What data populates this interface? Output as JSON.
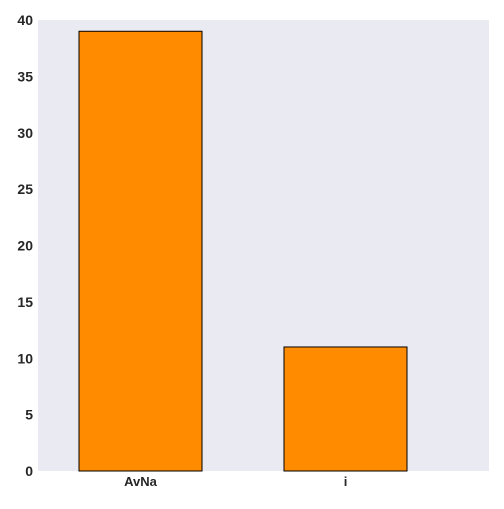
{
  "chart_data": {
    "type": "bar",
    "title": "",
    "xlabel": "",
    "ylabel": "",
    "categories": [
      "AvNa",
      "i"
    ],
    "values": [
      39,
      11
    ],
    "ylim": [
      0,
      40
    ],
    "yticks": [
      0,
      5,
      10,
      15,
      20,
      25,
      30,
      35,
      40
    ],
    "grid": false,
    "legend": "none"
  },
  "colors": {
    "bar": "#FF8C00",
    "bar_edge": "#000000",
    "plot_background": "#EAEAF2",
    "text": "#262626"
  }
}
